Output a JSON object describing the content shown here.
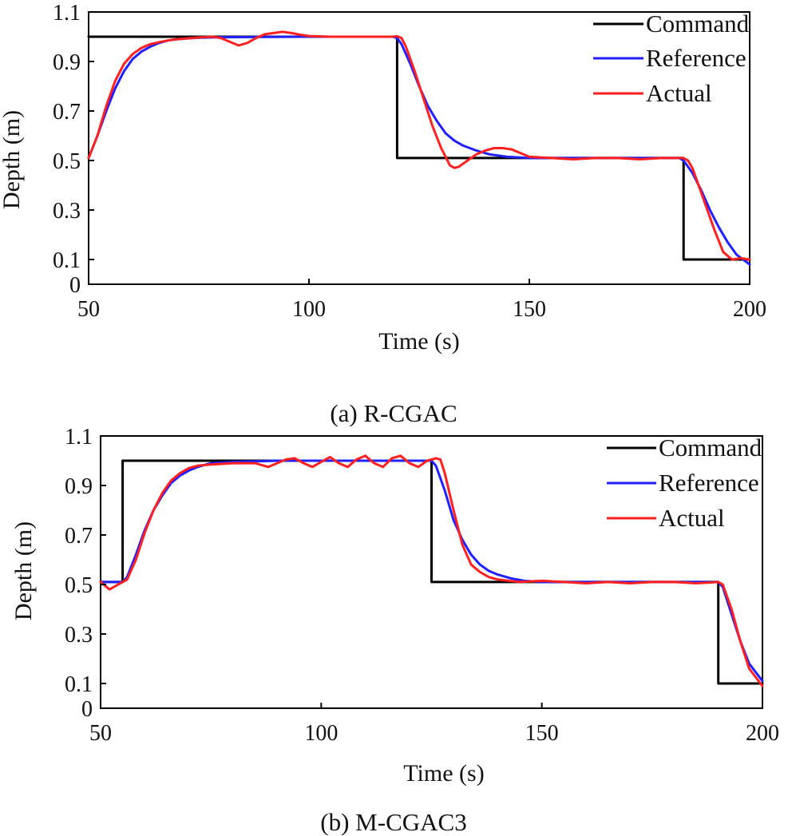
{
  "chart_data": [
    {
      "type": "line",
      "caption": "(a) R-CGAC",
      "xlabel": "Time (s)",
      "ylabel": "Depth (m)",
      "xlim": [
        50,
        200
      ],
      "ylim": [
        0,
        1.1
      ],
      "xticks": [
        50,
        100,
        150,
        200
      ],
      "xtick_labels": [
        "50",
        "100",
        "150",
        "200"
      ],
      "yticks": [
        0,
        0.1,
        0.3,
        0.5,
        0.7,
        0.9,
        1.1
      ],
      "ytick_labels": [
        "0",
        "0.1",
        "0.3",
        "0.5",
        "0.7",
        "0.9",
        "1.1"
      ],
      "legend_position": "top-right",
      "series": [
        {
          "name": "Command",
          "color": "#000000",
          "x": [
            50,
            120,
            120,
            185,
            185,
            200
          ],
          "y": [
            1.0,
            1.0,
            0.51,
            0.51,
            0.1,
            0.1
          ]
        },
        {
          "name": "Reference",
          "color": "#1f1fff",
          "x": [
            50,
            52,
            54,
            56,
            58,
            60,
            62,
            64,
            66,
            68,
            70,
            72,
            75,
            80,
            90,
            100,
            110,
            119,
            120,
            121,
            123,
            125,
            127,
            129,
            131,
            133,
            135,
            138,
            141,
            145,
            150,
            160,
            170,
            180,
            184,
            185,
            187,
            189,
            191,
            193,
            195,
            197,
            200
          ],
          "y": [
            0.51,
            0.6,
            0.7,
            0.79,
            0.86,
            0.91,
            0.94,
            0.96,
            0.975,
            0.985,
            0.99,
            0.993,
            0.996,
            0.998,
            0.999,
            1.0,
            1.0,
            1.0,
            0.995,
            0.97,
            0.89,
            0.8,
            0.72,
            0.66,
            0.61,
            0.58,
            0.56,
            0.54,
            0.525,
            0.515,
            0.51,
            0.51,
            0.51,
            0.51,
            0.51,
            0.5,
            0.45,
            0.38,
            0.3,
            0.23,
            0.17,
            0.12,
            0.08
          ]
        },
        {
          "name": "Actual",
          "color": "#ff1f1f",
          "x": [
            50,
            52,
            54,
            56,
            58,
            60,
            62,
            64,
            66,
            68,
            70,
            72,
            75,
            78,
            80,
            82,
            84,
            86,
            88,
            90,
            92,
            94,
            96,
            98,
            100,
            105,
            110,
            115,
            119,
            120,
            121,
            122,
            124,
            126,
            128,
            130,
            132,
            133,
            134,
            136,
            138,
            140,
            142,
            144,
            146,
            148,
            150,
            155,
            160,
            165,
            170,
            175,
            180,
            185,
            186,
            187,
            188,
            190,
            192,
            194,
            196,
            198,
            200
          ],
          "y": [
            0.51,
            0.6,
            0.72,
            0.82,
            0.89,
            0.93,
            0.955,
            0.97,
            0.978,
            0.985,
            0.99,
            0.993,
            0.997,
            1.0,
            0.995,
            0.98,
            0.965,
            0.975,
            0.995,
            1.01,
            1.015,
            1.02,
            1.015,
            1.008,
            1.003,
            1.0,
            1.0,
            1.0,
            1.0,
            1.002,
            0.995,
            0.96,
            0.86,
            0.75,
            0.64,
            0.55,
            0.48,
            0.47,
            0.475,
            0.5,
            0.525,
            0.54,
            0.55,
            0.55,
            0.545,
            0.53,
            0.515,
            0.51,
            0.505,
            0.51,
            0.51,
            0.505,
            0.51,
            0.51,
            0.5,
            0.47,
            0.42,
            0.32,
            0.22,
            0.13,
            0.1,
            0.105,
            0.1
          ]
        }
      ]
    },
    {
      "type": "line",
      "caption": "(b) M-CGAC3",
      "xlabel": "Time (s)",
      "ylabel": "Depth (m)",
      "xlim": [
        50,
        200
      ],
      "ylim": [
        0,
        1.1
      ],
      "xticks": [
        50,
        100,
        150,
        200
      ],
      "xtick_labels": [
        "50",
        "100",
        "150",
        "200"
      ],
      "yticks": [
        0,
        0.1,
        0.3,
        0.5,
        0.7,
        0.9,
        1.1
      ],
      "ytick_labels": [
        "0",
        "0.1",
        "0.3",
        "0.5",
        "0.7",
        "0.9",
        "1.1"
      ],
      "legend_position": "top-right",
      "series": [
        {
          "name": "Command",
          "color": "#000000",
          "x": [
            50,
            55,
            55,
            125,
            125,
            190,
            190,
            200
          ],
          "y": [
            0.51,
            0.51,
            1.0,
            1.0,
            0.51,
            0.51,
            0.1,
            0.1
          ]
        },
        {
          "name": "Reference",
          "color": "#1f1fff",
          "x": [
            50,
            55,
            56,
            58,
            60,
            62,
            64,
            66,
            68,
            70,
            72,
            75,
            80,
            90,
            100,
            110,
            120,
            125,
            126,
            128,
            130,
            132,
            134,
            136,
            138,
            140,
            143,
            146,
            150,
            160,
            170,
            180,
            190,
            191,
            193,
            195,
            197,
            200
          ],
          "y": [
            0.51,
            0.51,
            0.53,
            0.62,
            0.72,
            0.8,
            0.86,
            0.91,
            0.94,
            0.96,
            0.975,
            0.99,
            0.995,
            1.0,
            1.0,
            1.0,
            1.0,
            1.0,
            0.98,
            0.88,
            0.76,
            0.68,
            0.62,
            0.58,
            0.555,
            0.54,
            0.525,
            0.515,
            0.51,
            0.51,
            0.51,
            0.51,
            0.51,
            0.49,
            0.38,
            0.27,
            0.18,
            0.11
          ]
        },
        {
          "name": "Actual",
          "color": "#ff1f1f",
          "x": [
            50,
            52,
            54,
            56,
            58,
            60,
            62,
            64,
            66,
            68,
            70,
            72,
            75,
            80,
            85,
            88,
            90,
            92,
            94,
            96,
            98,
            100,
            102,
            104,
            106,
            108,
            110,
            112,
            114,
            116,
            118,
            120,
            122,
            124,
            126,
            127,
            128,
            130,
            132,
            134,
            136,
            138,
            140,
            145,
            150,
            155,
            160,
            165,
            170,
            175,
            180,
            185,
            190,
            191,
            193,
            195,
            197,
            200
          ],
          "y": [
            0.51,
            0.48,
            0.5,
            0.52,
            0.6,
            0.71,
            0.8,
            0.87,
            0.92,
            0.95,
            0.97,
            0.98,
            0.985,
            0.99,
            0.99,
            0.975,
            0.99,
            1.005,
            1.01,
            0.99,
            0.975,
            0.995,
            1.015,
            0.99,
            0.975,
            1.005,
            1.02,
            0.99,
            0.975,
            1.01,
            1.02,
            0.99,
            0.975,
            1.0,
            1.01,
            1.005,
            0.95,
            0.8,
            0.66,
            0.58,
            0.55,
            0.53,
            0.52,
            0.51,
            0.515,
            0.51,
            0.505,
            0.51,
            0.505,
            0.51,
            0.51,
            0.505,
            0.51,
            0.5,
            0.4,
            0.27,
            0.16,
            0.09
          ]
        }
      ]
    }
  ]
}
